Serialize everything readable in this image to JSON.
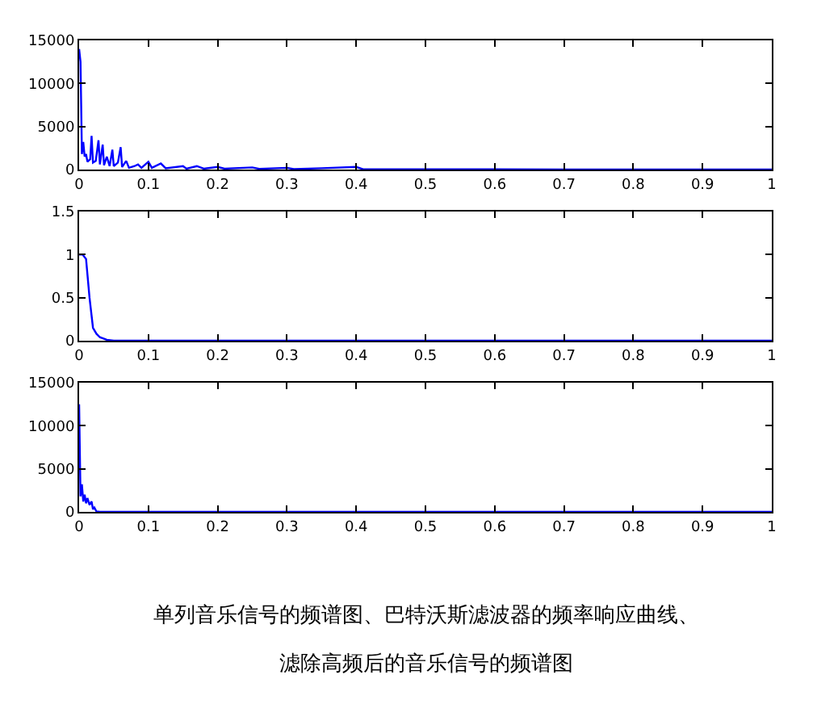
{
  "chart_data": [
    {
      "type": "line",
      "x": [
        0,
        0.002,
        0.004,
        0.006,
        0.008,
        0.01,
        0.012,
        0.016,
        0.018,
        0.02,
        0.024,
        0.028,
        0.03,
        0.034,
        0.036,
        0.04,
        0.044,
        0.048,
        0.05,
        0.056,
        0.06,
        0.062,
        0.068,
        0.072,
        0.08,
        0.085,
        0.09,
        0.1,
        0.105,
        0.118,
        0.125,
        0.15,
        0.155,
        0.17,
        0.18,
        0.2,
        0.21,
        0.25,
        0.26,
        0.3,
        0.31,
        0.35,
        0.4,
        0.41,
        0.5,
        0.6,
        0.7,
        0.8,
        0.9,
        1
      ],
      "series": [
        {
          "color": "#0000ff",
          "values": [
            14000,
            12500,
            1800,
            3200,
            1500,
            1800,
            900,
            1200,
            3900,
            800,
            1000,
            3400,
            600,
            2900,
            500,
            1500,
            400,
            2300,
            400,
            800,
            2600,
            300,
            1000,
            200,
            400,
            600,
            200,
            900,
            200,
            700,
            150,
            400,
            100,
            400,
            100,
            300,
            100,
            250,
            80,
            200,
            60,
            150,
            300,
            40,
            30,
            20,
            15,
            10,
            10,
            5
          ]
        }
      ],
      "xlim": [
        0,
        1
      ],
      "xticks": [
        0,
        0.1,
        0.2,
        0.3,
        0.4,
        0.5,
        0.6,
        0.7,
        0.8,
        0.9,
        1
      ],
      "ylim": [
        0,
        15000
      ],
      "yticks": [
        0,
        5000,
        10000,
        15000
      ]
    },
    {
      "type": "line",
      "x": [
        0,
        0.005,
        0.01,
        0.015,
        0.02,
        0.025,
        0.03,
        0.04,
        0.05,
        1
      ],
      "series": [
        {
          "color": "#0000ff",
          "values": [
            1,
            1,
            0.95,
            0.5,
            0.15,
            0.08,
            0.04,
            0.01,
            0,
            0
          ]
        }
      ],
      "xlim": [
        0,
        1
      ],
      "xticks": [
        0,
        0.1,
        0.2,
        0.3,
        0.4,
        0.5,
        0.6,
        0.7,
        0.8,
        0.9,
        1
      ],
      "ylim": [
        0,
        1.5
      ],
      "yticks": [
        0,
        0.5,
        1,
        1.5
      ]
    },
    {
      "type": "line",
      "x": [
        0,
        0.002,
        0.004,
        0.006,
        0.008,
        0.01,
        0.012,
        0.015,
        0.018,
        0.02,
        0.022,
        0.025,
        0.03,
        1
      ],
      "series": [
        {
          "color": "#0000ff",
          "values": [
            12500,
            1800,
            3200,
            1200,
            2000,
            1000,
            1600,
            800,
            1200,
            300,
            500,
            50,
            0,
            0
          ]
        }
      ],
      "xlim": [
        0,
        1
      ],
      "xticks": [
        0,
        0.1,
        0.2,
        0.3,
        0.4,
        0.5,
        0.6,
        0.7,
        0.8,
        0.9,
        1
      ],
      "ylim": [
        0,
        15000
      ],
      "yticks": [
        0,
        5000,
        10000,
        15000
      ],
      "annotations": [
        "单列音乐信号的频谱图、巴特沃斯滤波器的频率响应曲线、",
        "滤除高频后的音乐信号的频谱图"
      ]
    }
  ]
}
